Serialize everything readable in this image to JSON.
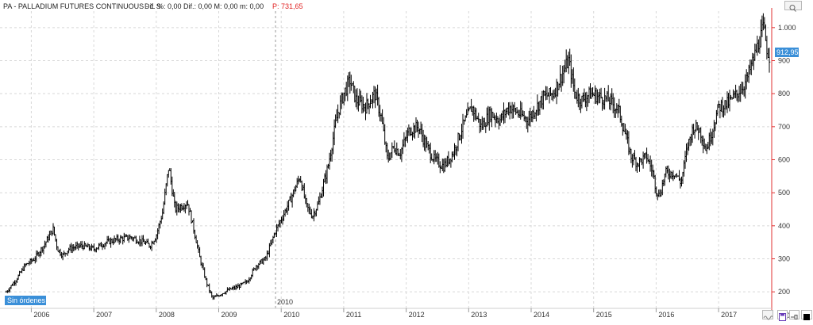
{
  "header": {
    "title": "PA - PALLADIUM FUTURES CONTINUOUS - 1 S",
    "stats": "Dif. %: 0,00  Dif.: 0,00  M: 0,00  m: 0,00",
    "pointer_value": "P: 731,65"
  },
  "price_badge": "912,95",
  "orders_badge": "Sin órdenes",
  "cursor_label": "2010",
  "colors": {
    "axis": "#e03030",
    "badge": "#3a8fd8",
    "candle": "#000000",
    "grid": "#d8d8d8"
  },
  "chart_data": {
    "type": "line",
    "title": "PA - PALLADIUM FUTURES CONTINUOUS - 1 S",
    "xlabel": "",
    "ylabel": "",
    "x_ticks": [
      "2006",
      "2007",
      "2008",
      "2009",
      "2010",
      "2011",
      "2012",
      "2013",
      "2014",
      "2015",
      "2016",
      "2017"
    ],
    "y_ticks": [
      200,
      300,
      400,
      500,
      600,
      700,
      800,
      900,
      "1.000"
    ],
    "ylim": [
      150,
      1050
    ],
    "xlim": [
      2005.55,
      2017.85
    ],
    "grid": true,
    "last_value": 912.95,
    "series": [
      {
        "values": [
          [
            2005.6,
            200
          ],
          [
            2005.75,
            235
          ],
          [
            2005.9,
            280
          ],
          [
            2006.05,
            300
          ],
          [
            2006.2,
            340
          ],
          [
            2006.35,
            390
          ],
          [
            2006.42,
            330
          ],
          [
            2006.5,
            310
          ],
          [
            2006.6,
            330
          ],
          [
            2006.8,
            340
          ],
          [
            2007.0,
            330
          ],
          [
            2007.2,
            350
          ],
          [
            2007.4,
            360
          ],
          [
            2007.6,
            365
          ],
          [
            2007.8,
            350
          ],
          [
            2007.9,
            340
          ],
          [
            2008.0,
            370
          ],
          [
            2008.1,
            440
          ],
          [
            2008.2,
            580
          ],
          [
            2008.3,
            450
          ],
          [
            2008.4,
            460
          ],
          [
            2008.5,
            470
          ],
          [
            2008.6,
            390
          ],
          [
            2008.7,
            300
          ],
          [
            2008.8,
            230
          ],
          [
            2008.9,
            180
          ],
          [
            2009.0,
            190
          ],
          [
            2009.15,
            205
          ],
          [
            2009.3,
            215
          ],
          [
            2009.45,
            230
          ],
          [
            2009.6,
            280
          ],
          [
            2009.75,
            300
          ],
          [
            2009.9,
            380
          ],
          [
            2010.05,
            440
          ],
          [
            2010.15,
            480
          ],
          [
            2010.3,
            550
          ],
          [
            2010.4,
            460
          ],
          [
            2010.5,
            430
          ],
          [
            2010.6,
            470
          ],
          [
            2010.75,
            580
          ],
          [
            2010.9,
            740
          ],
          [
            2011.0,
            800
          ],
          [
            2011.1,
            840
          ],
          [
            2011.2,
            780
          ],
          [
            2011.35,
            760
          ],
          [
            2011.5,
            800
          ],
          [
            2011.6,
            730
          ],
          [
            2011.7,
            600
          ],
          [
            2011.8,
            640
          ],
          [
            2011.9,
            620
          ],
          [
            2012.05,
            690
          ],
          [
            2012.2,
            700
          ],
          [
            2012.3,
            650
          ],
          [
            2012.45,
            600
          ],
          [
            2012.6,
            580
          ],
          [
            2012.75,
            620
          ],
          [
            2012.9,
            700
          ],
          [
            2013.05,
            760
          ],
          [
            2013.2,
            700
          ],
          [
            2013.35,
            740
          ],
          [
            2013.5,
            720
          ],
          [
            2013.65,
            760
          ],
          [
            2013.8,
            740
          ],
          [
            2013.95,
            720
          ],
          [
            2014.05,
            750
          ],
          [
            2014.2,
            790
          ],
          [
            2014.35,
            800
          ],
          [
            2014.5,
            860
          ],
          [
            2014.6,
            900
          ],
          [
            2014.7,
            800
          ],
          [
            2014.8,
            780
          ],
          [
            2014.95,
            800
          ],
          [
            2015.1,
            790
          ],
          [
            2015.25,
            780
          ],
          [
            2015.4,
            750
          ],
          [
            2015.5,
            680
          ],
          [
            2015.6,
            610
          ],
          [
            2015.7,
            590
          ],
          [
            2015.85,
            610
          ],
          [
            2015.95,
            560
          ],
          [
            2016.0,
            510
          ],
          [
            2016.05,
            490
          ],
          [
            2016.15,
            560
          ],
          [
            2016.3,
            560
          ],
          [
            2016.4,
            530
          ],
          [
            2016.5,
            640
          ],
          [
            2016.6,
            700
          ],
          [
            2016.7,
            690
          ],
          [
            2016.8,
            630
          ],
          [
            2016.9,
            690
          ],
          [
            2017.0,
            760
          ],
          [
            2017.15,
            770
          ],
          [
            2017.3,
            800
          ],
          [
            2017.45,
            840
          ],
          [
            2017.55,
            900
          ],
          [
            2017.65,
            960
          ],
          [
            2017.72,
            1000
          ],
          [
            2017.78,
            930
          ],
          [
            2017.82,
            913
          ]
        ]
      }
    ]
  }
}
